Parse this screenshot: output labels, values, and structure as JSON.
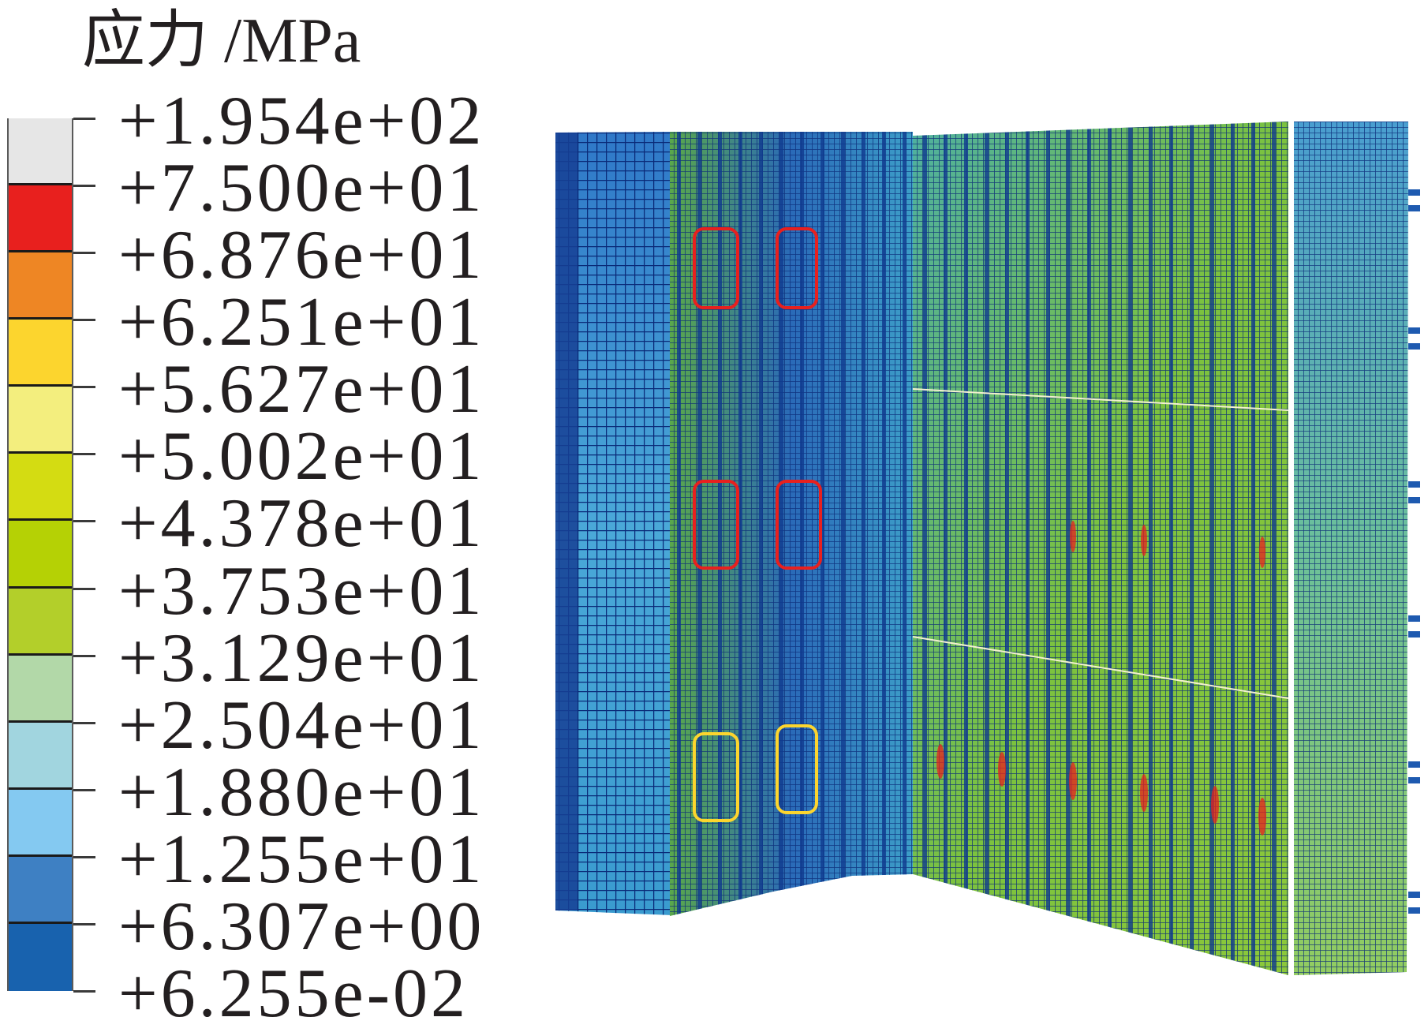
{
  "legend": {
    "title": "应力 /MPa",
    "labels": [
      "+1.954e+02",
      "+7.500e+01",
      "+6.876e+01",
      "+6.251e+01",
      "+5.627e+01",
      "+5.002e+01",
      "+4.378e+01",
      "+3.753e+01",
      "+3.129e+01",
      "+2.504e+01",
      "+1.880e+01",
      "+1.255e+01",
      "+6.307e+00",
      "+6.255e-02"
    ],
    "colors": [
      "#e6e6e6",
      "#e8201e",
      "#ee8624",
      "#fcd52e",
      "#f3ee7e",
      "#d4dc12",
      "#b5d105",
      "#b3cf2a",
      "#b2d8a8",
      "#a1d5df",
      "#84c9f1",
      "#3e80c3",
      "#1862ae"
    ]
  },
  "plot": {
    "mesh_color": "#0a2a78",
    "hotspot_colors": [
      "#e8201e",
      "#fcd52e"
    ]
  }
}
